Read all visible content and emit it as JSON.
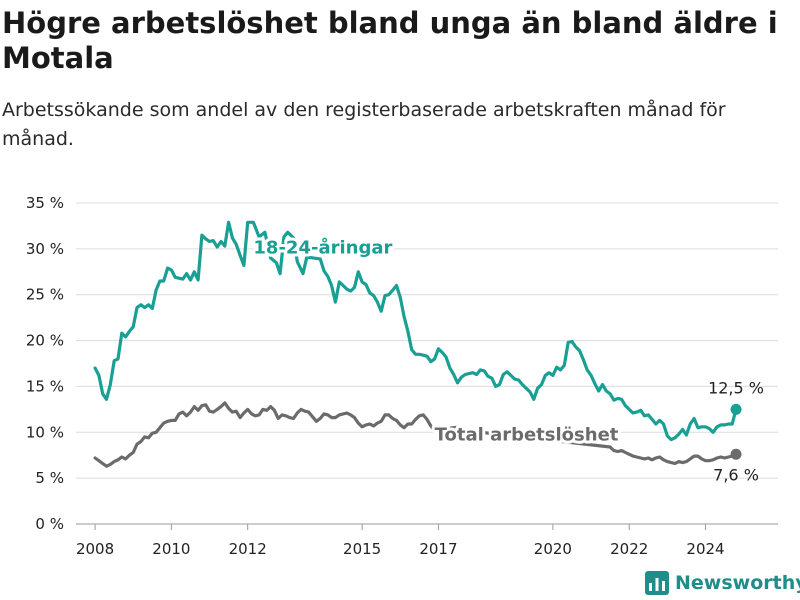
{
  "header": {
    "title": "Högre arbetslöshet bland unga än bland äldre i Motala",
    "subtitle": "Arbetssökande som andel av den registerbaserade arbetskraften månad för månad."
  },
  "brand": {
    "name": "Newsworthy",
    "logo_icon": "bar-chart-logo-icon"
  },
  "chart_data": {
    "type": "line",
    "title": "Högre arbetslöshet bland unga än bland äldre i Motala",
    "subtitle": "Arbetssökande som andel av den registerbaserade arbetskraften månad för månad.",
    "xlabel": "",
    "ylabel": "",
    "xlim": [
      2007.5,
      2025.9
    ],
    "ylim": [
      0,
      35
    ],
    "x_ticks": [
      2008,
      2010,
      2012,
      2015,
      2017,
      2020,
      2022,
      2024
    ],
    "x_tick_labels": [
      "2008",
      "2010",
      "2012",
      "2015",
      "2017",
      "2020",
      "2022",
      "2024"
    ],
    "y_ticks": [
      0,
      5,
      10,
      15,
      20,
      25,
      30,
      35
    ],
    "y_tick_labels": [
      "0 %",
      "5 %",
      "10 %",
      "15 %",
      "20 %",
      "25 %",
      "30 %",
      "35 %"
    ],
    "grid": "horizontal",
    "legend": "inline labels",
    "series": [
      {
        "name": "18-24-åringar",
        "color": "#17a093",
        "end_label": "12,5 %",
        "points": [
          [
            2008.0,
            17.0
          ],
          [
            2008.1,
            16.2
          ],
          [
            2008.2,
            14.2
          ],
          [
            2008.3,
            13.6
          ],
          [
            2008.4,
            15.2
          ],
          [
            2008.5,
            17.8
          ],
          [
            2008.6,
            18.0
          ],
          [
            2008.7,
            20.8
          ],
          [
            2008.8,
            20.4
          ],
          [
            2008.9,
            21.0
          ],
          [
            2009.0,
            21.5
          ],
          [
            2009.1,
            23.6
          ],
          [
            2009.2,
            23.9
          ],
          [
            2009.3,
            23.6
          ],
          [
            2009.4,
            23.9
          ],
          [
            2009.5,
            23.5
          ],
          [
            2009.6,
            25.5
          ],
          [
            2009.7,
            26.5
          ],
          [
            2009.8,
            26.5
          ],
          [
            2009.9,
            27.9
          ],
          [
            2010.0,
            27.7
          ],
          [
            2010.1,
            26.9
          ],
          [
            2010.2,
            26.8
          ],
          [
            2010.3,
            26.7
          ],
          [
            2010.4,
            27.3
          ],
          [
            2010.5,
            26.6
          ],
          [
            2010.6,
            27.5
          ],
          [
            2010.7,
            26.6
          ],
          [
            2010.8,
            31.5
          ],
          [
            2010.9,
            31.1
          ],
          [
            2011.0,
            30.8
          ],
          [
            2011.1,
            30.9
          ],
          [
            2011.2,
            30.2
          ],
          [
            2011.3,
            30.8
          ],
          [
            2011.4,
            30.3
          ],
          [
            2011.5,
            32.9
          ],
          [
            2011.6,
            31.2
          ],
          [
            2011.7,
            30.5
          ],
          [
            2011.8,
            29.3
          ],
          [
            2011.9,
            28.2
          ],
          [
            2012.0,
            32.9
          ],
          [
            2012.15,
            32.9
          ],
          [
            2012.3,
            31.3
          ],
          [
            2012.45,
            31.8
          ],
          [
            2012.6,
            29.0
          ],
          [
            2012.75,
            28.5
          ],
          [
            2012.85,
            27.3
          ],
          [
            2012.95,
            31.3
          ],
          [
            2013.05,
            31.8
          ],
          [
            2013.2,
            31.2
          ],
          [
            2013.3,
            28.6
          ],
          [
            2013.45,
            27.3
          ],
          [
            2013.55,
            29.1
          ],
          [
            2013.9,
            28.9
          ],
          [
            2014.0,
            27.6
          ],
          [
            2014.1,
            27.0
          ],
          [
            2014.2,
            26.0
          ],
          [
            2014.3,
            24.2
          ],
          [
            2014.4,
            26.4
          ],
          [
            2014.5,
            26.0
          ],
          [
            2014.6,
            25.6
          ],
          [
            2014.7,
            25.4
          ],
          [
            2014.8,
            25.8
          ],
          [
            2014.9,
            27.5
          ],
          [
            2015.0,
            26.4
          ],
          [
            2015.1,
            26.1
          ],
          [
            2015.2,
            25.2
          ],
          [
            2015.3,
            24.9
          ],
          [
            2015.4,
            24.2
          ],
          [
            2015.5,
            23.2
          ],
          [
            2015.6,
            24.9
          ],
          [
            2015.7,
            25.0
          ],
          [
            2015.8,
            25.5
          ],
          [
            2015.9,
            26.0
          ],
          [
            2016.0,
            24.7
          ],
          [
            2016.1,
            22.6
          ],
          [
            2016.2,
            21.0
          ],
          [
            2016.3,
            19.0
          ],
          [
            2016.4,
            18.5
          ],
          [
            2016.5,
            18.5
          ],
          [
            2016.6,
            18.4
          ],
          [
            2016.7,
            18.3
          ],
          [
            2016.8,
            17.7
          ],
          [
            2016.9,
            18.0
          ],
          [
            2017.0,
            19.1
          ],
          [
            2017.1,
            18.7
          ],
          [
            2017.2,
            18.2
          ],
          [
            2017.3,
            17.0
          ],
          [
            2017.4,
            16.3
          ],
          [
            2017.5,
            15.4
          ],
          [
            2017.6,
            16.0
          ],
          [
            2017.7,
            16.3
          ],
          [
            2017.8,
            16.4
          ],
          [
            2017.9,
            16.5
          ],
          [
            2018.0,
            16.3
          ],
          [
            2018.1,
            16.8
          ],
          [
            2018.2,
            16.7
          ],
          [
            2018.3,
            16.1
          ],
          [
            2018.4,
            15.9
          ],
          [
            2018.5,
            15.0
          ],
          [
            2018.6,
            15.2
          ],
          [
            2018.7,
            16.3
          ],
          [
            2018.8,
            16.6
          ],
          [
            2018.9,
            16.2
          ],
          [
            2019.0,
            15.8
          ],
          [
            2019.1,
            15.7
          ],
          [
            2019.2,
            15.2
          ],
          [
            2019.3,
            14.8
          ],
          [
            2019.4,
            14.4
          ],
          [
            2019.5,
            13.6
          ],
          [
            2019.6,
            14.8
          ],
          [
            2019.7,
            15.2
          ],
          [
            2019.8,
            16.2
          ],
          [
            2019.9,
            16.5
          ],
          [
            2020.0,
            16.2
          ],
          [
            2020.1,
            17.1
          ],
          [
            2020.2,
            16.8
          ],
          [
            2020.3,
            17.3
          ],
          [
            2020.4,
            19.8
          ],
          [
            2020.5,
            19.9
          ],
          [
            2020.6,
            19.3
          ],
          [
            2020.7,
            18.9
          ],
          [
            2020.8,
            17.9
          ],
          [
            2020.9,
            16.8
          ],
          [
            2021.0,
            16.2
          ],
          [
            2021.1,
            15.3
          ],
          [
            2021.2,
            14.5
          ],
          [
            2021.3,
            15.2
          ],
          [
            2021.4,
            14.5
          ],
          [
            2021.5,
            14.2
          ],
          [
            2021.6,
            13.5
          ],
          [
            2021.7,
            13.7
          ],
          [
            2021.8,
            13.6
          ],
          [
            2021.9,
            12.9
          ],
          [
            2022.0,
            12.5
          ],
          [
            2022.1,
            12.1
          ],
          [
            2022.2,
            12.2
          ],
          [
            2022.3,
            12.4
          ],
          [
            2022.4,
            11.8
          ],
          [
            2022.5,
            11.9
          ],
          [
            2022.6,
            11.4
          ],
          [
            2022.7,
            10.9
          ],
          [
            2022.8,
            11.3
          ],
          [
            2022.9,
            10.9
          ],
          [
            2023.0,
            9.6
          ],
          [
            2023.1,
            9.2
          ],
          [
            2023.2,
            9.4
          ],
          [
            2023.3,
            9.8
          ],
          [
            2023.4,
            10.3
          ],
          [
            2023.5,
            9.7
          ],
          [
            2023.6,
            10.9
          ],
          [
            2023.7,
            11.5
          ],
          [
            2023.8,
            10.5
          ],
          [
            2023.9,
            10.6
          ],
          [
            2024.0,
            10.6
          ],
          [
            2024.1,
            10.4
          ],
          [
            2024.2,
            10.0
          ],
          [
            2024.3,
            10.6
          ],
          [
            2024.4,
            10.8
          ],
          [
            2024.5,
            10.8
          ],
          [
            2024.6,
            10.9
          ],
          [
            2024.7,
            10.9
          ],
          [
            2024.8,
            12.5
          ]
        ]
      },
      {
        "name": "Total arbetslöshet",
        "color": "#6b6b6b",
        "end_label": "7,6 %",
        "points": [
          [
            2008.0,
            7.2
          ],
          [
            2008.1,
            6.9
          ],
          [
            2008.2,
            6.6
          ],
          [
            2008.3,
            6.3
          ],
          [
            2008.4,
            6.5
          ],
          [
            2008.5,
            6.8
          ],
          [
            2008.6,
            7.0
          ],
          [
            2008.7,
            7.3
          ],
          [
            2008.8,
            7.1
          ],
          [
            2008.9,
            7.5
          ],
          [
            2009.0,
            7.8
          ],
          [
            2009.1,
            8.7
          ],
          [
            2009.2,
            9.0
          ],
          [
            2009.3,
            9.5
          ],
          [
            2009.4,
            9.4
          ],
          [
            2009.5,
            9.9
          ],
          [
            2009.6,
            10.0
          ],
          [
            2009.7,
            10.5
          ],
          [
            2009.8,
            11.0
          ],
          [
            2009.9,
            11.2
          ],
          [
            2010.0,
            11.3
          ],
          [
            2010.1,
            11.3
          ],
          [
            2010.2,
            12.0
          ],
          [
            2010.3,
            12.2
          ],
          [
            2010.4,
            11.8
          ],
          [
            2010.5,
            12.2
          ],
          [
            2010.6,
            12.8
          ],
          [
            2010.7,
            12.4
          ],
          [
            2010.8,
            12.9
          ],
          [
            2010.9,
            13.0
          ],
          [
            2011.0,
            12.3
          ],
          [
            2011.1,
            12.2
          ],
          [
            2011.2,
            12.5
          ],
          [
            2011.3,
            12.8
          ],
          [
            2011.4,
            13.2
          ],
          [
            2011.5,
            12.6
          ],
          [
            2011.6,
            12.2
          ],
          [
            2011.7,
            12.3
          ],
          [
            2011.8,
            11.6
          ],
          [
            2011.9,
            12.1
          ],
          [
            2012.0,
            12.5
          ],
          [
            2012.1,
            12.0
          ],
          [
            2012.2,
            11.8
          ],
          [
            2012.3,
            11.9
          ],
          [
            2012.4,
            12.5
          ],
          [
            2012.5,
            12.4
          ],
          [
            2012.6,
            12.8
          ],
          [
            2012.7,
            12.4
          ],
          [
            2012.8,
            11.5
          ],
          [
            2012.9,
            11.9
          ],
          [
            2013.0,
            11.8
          ],
          [
            2013.1,
            11.6
          ],
          [
            2013.2,
            11.5
          ],
          [
            2013.3,
            12.1
          ],
          [
            2013.4,
            12.5
          ],
          [
            2013.5,
            12.3
          ],
          [
            2013.6,
            12.2
          ],
          [
            2013.7,
            11.7
          ],
          [
            2013.8,
            11.2
          ],
          [
            2013.9,
            11.5
          ],
          [
            2014.0,
            12.0
          ],
          [
            2014.1,
            11.9
          ],
          [
            2014.2,
            11.6
          ],
          [
            2014.3,
            11.6
          ],
          [
            2014.4,
            11.9
          ],
          [
            2014.5,
            12.0
          ],
          [
            2014.6,
            12.1
          ],
          [
            2014.7,
            11.9
          ],
          [
            2014.8,
            11.6
          ],
          [
            2014.9,
            11.0
          ],
          [
            2015.0,
            10.6
          ],
          [
            2015.1,
            10.8
          ],
          [
            2015.2,
            10.9
          ],
          [
            2015.3,
            10.7
          ],
          [
            2015.4,
            11.0
          ],
          [
            2015.5,
            11.2
          ],
          [
            2015.6,
            11.9
          ],
          [
            2015.7,
            11.9
          ],
          [
            2015.8,
            11.5
          ],
          [
            2015.9,
            11.3
          ],
          [
            2016.0,
            10.8
          ],
          [
            2016.1,
            10.5
          ],
          [
            2016.2,
            10.9
          ],
          [
            2016.3,
            10.9
          ],
          [
            2016.4,
            11.4
          ],
          [
            2016.5,
            11.8
          ],
          [
            2016.6,
            11.9
          ],
          [
            2016.7,
            11.4
          ],
          [
            2016.8,
            10.7
          ],
          [
            2016.9,
            10.2
          ],
          [
            2017.0,
            10.3
          ],
          [
            2017.6,
            10.6
          ],
          [
            2017.7,
            10.2
          ],
          [
            2021.5,
            8.4
          ],
          [
            2021.6,
            8.0
          ],
          [
            2021.7,
            7.9
          ],
          [
            2021.8,
            8.0
          ],
          [
            2021.9,
            7.8
          ],
          [
            2022.0,
            7.6
          ],
          [
            2022.1,
            7.4
          ],
          [
            2022.2,
            7.3
          ],
          [
            2022.3,
            7.2
          ],
          [
            2022.4,
            7.1
          ],
          [
            2022.5,
            7.2
          ],
          [
            2022.6,
            7.0
          ],
          [
            2022.7,
            7.2
          ],
          [
            2022.8,
            7.3
          ],
          [
            2022.9,
            7.0
          ],
          [
            2023.0,
            6.8
          ],
          [
            2023.1,
            6.7
          ],
          [
            2023.2,
            6.6
          ],
          [
            2023.3,
            6.8
          ],
          [
            2023.4,
            6.7
          ],
          [
            2023.5,
            6.8
          ],
          [
            2023.6,
            7.1
          ],
          [
            2023.7,
            7.4
          ],
          [
            2023.8,
            7.4
          ],
          [
            2023.9,
            7.1
          ],
          [
            2024.0,
            6.9
          ],
          [
            2024.1,
            6.9
          ],
          [
            2024.2,
            7.0
          ],
          [
            2024.3,
            7.2
          ],
          [
            2024.4,
            7.3
          ],
          [
            2024.5,
            7.2
          ],
          [
            2024.6,
            7.3
          ],
          [
            2024.7,
            7.4
          ],
          [
            2024.8,
            7.6
          ]
        ]
      }
    ]
  }
}
